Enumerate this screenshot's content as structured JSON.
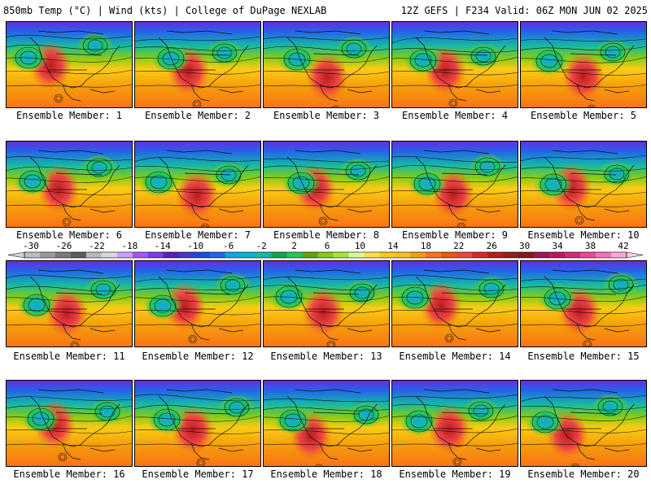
{
  "header": {
    "left": "850mb Temp (°C) | Wind (kts) | College of DuPage NEXLAB",
    "right": "12Z GEFS | F234 Valid: 06Z MON JUN 02 2025"
  },
  "panels": [
    {
      "label": "Ensemble Member: 1"
    },
    {
      "label": "Ensemble Member: 2"
    },
    {
      "label": "Ensemble Member: 3"
    },
    {
      "label": "Ensemble Member: 4"
    },
    {
      "label": "Ensemble Member: 5"
    },
    {
      "label": "Ensemble Member: 6"
    },
    {
      "label": "Ensemble Member: 7"
    },
    {
      "label": "Ensemble Member: 8"
    },
    {
      "label": "Ensemble Member: 9"
    },
    {
      "label": "Ensemble Member: 10"
    },
    {
      "label": "Ensemble Member: 11"
    },
    {
      "label": "Ensemble Member: 12"
    },
    {
      "label": "Ensemble Member: 13"
    },
    {
      "label": "Ensemble Member: 14"
    },
    {
      "label": "Ensemble Member: 15"
    },
    {
      "label": "Ensemble Member: 16"
    },
    {
      "label": "Ensemble Member: 17"
    },
    {
      "label": "Ensemble Member: 18"
    },
    {
      "label": "Ensemble Member: 19"
    },
    {
      "label": "Ensemble Member: 20"
    }
  ],
  "colorbar": {
    "ticks": [
      "-30",
      "-26",
      "-22",
      "-18",
      "-14",
      "-10",
      "-6",
      "-2",
      "2",
      "6",
      "10",
      "14",
      "18",
      "22",
      "26",
      "30",
      "34",
      "38",
      "42"
    ],
    "colors": [
      "#bdbdbd",
      "#9a9a9a",
      "#7a7a7a",
      "#5c5c5c",
      "#b9b9b9",
      "#d8d8d8",
      "#c8a0ff",
      "#a855f7",
      "#7c3aed",
      "#5b21b6",
      "#4338ca",
      "#1d4ed8",
      "#2563eb",
      "#0ea5e9",
      "#06b6d4",
      "#14b8a6",
      "#16a34a",
      "#22c55e",
      "#65a30d",
      "#84cc16",
      "#a3e635",
      "#d9f99d",
      "#fde047",
      "#facc15",
      "#fbbf24",
      "#f59e0b",
      "#f97316",
      "#ea580c",
      "#ef4444",
      "#dc2626",
      "#b91c1c",
      "#991b1b",
      "#7f1d1d",
      "#9d174d",
      "#be185d",
      "#db2777",
      "#ec4899",
      "#f472b6",
      "#f9a8d4"
    ]
  }
}
